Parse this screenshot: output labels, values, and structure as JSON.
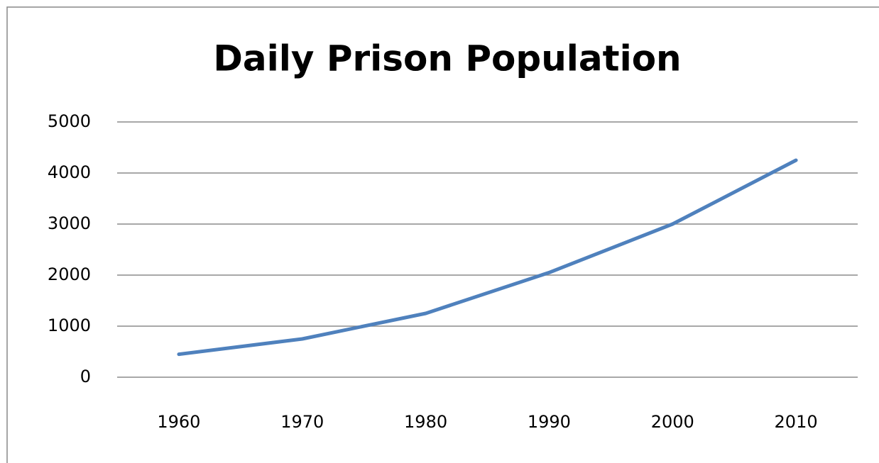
{
  "chart_data": {
    "type": "line",
    "title": "Daily Prison Population",
    "categories": [
      "1960",
      "1970",
      "1980",
      "1990",
      "2000",
      "2010"
    ],
    "values": [
      450,
      750,
      1250,
      2050,
      3000,
      4250
    ],
    "color": "#4f81bd",
    "ylim": [
      0,
      5000
    ],
    "yticks": [
      0,
      1000,
      2000,
      3000,
      4000,
      5000
    ],
    "grid": true
  }
}
